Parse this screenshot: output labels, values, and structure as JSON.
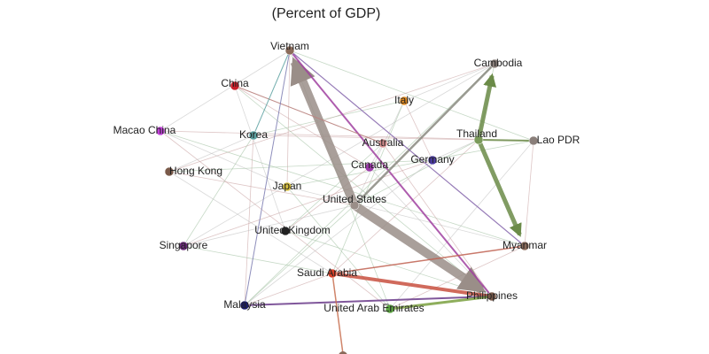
{
  "subtitle": "(Percent of GDP)",
  "nodes": [
    {
      "label": "Vietnam"
    },
    {
      "label": "Cambodia"
    },
    {
      "label": "China"
    },
    {
      "label": "Italy"
    },
    {
      "label": "Macao China"
    },
    {
      "label": "Korea"
    },
    {
      "label": "Australia"
    },
    {
      "label": "Thailand"
    },
    {
      "label": "Lao PDR"
    },
    {
      "label": "Germany"
    },
    {
      "label": "Canada"
    },
    {
      "label": "Hong Kong"
    },
    {
      "label": "Japan"
    },
    {
      "label": "United States"
    },
    {
      "label": "United Kingdom"
    },
    {
      "label": "Singapore"
    },
    {
      "label": "Myanmar"
    },
    {
      "label": "Saudi Arabia"
    },
    {
      "label": "Philippines"
    },
    {
      "label": "Malaysia"
    },
    {
      "label": "United Arab Emirates"
    }
  ]
}
